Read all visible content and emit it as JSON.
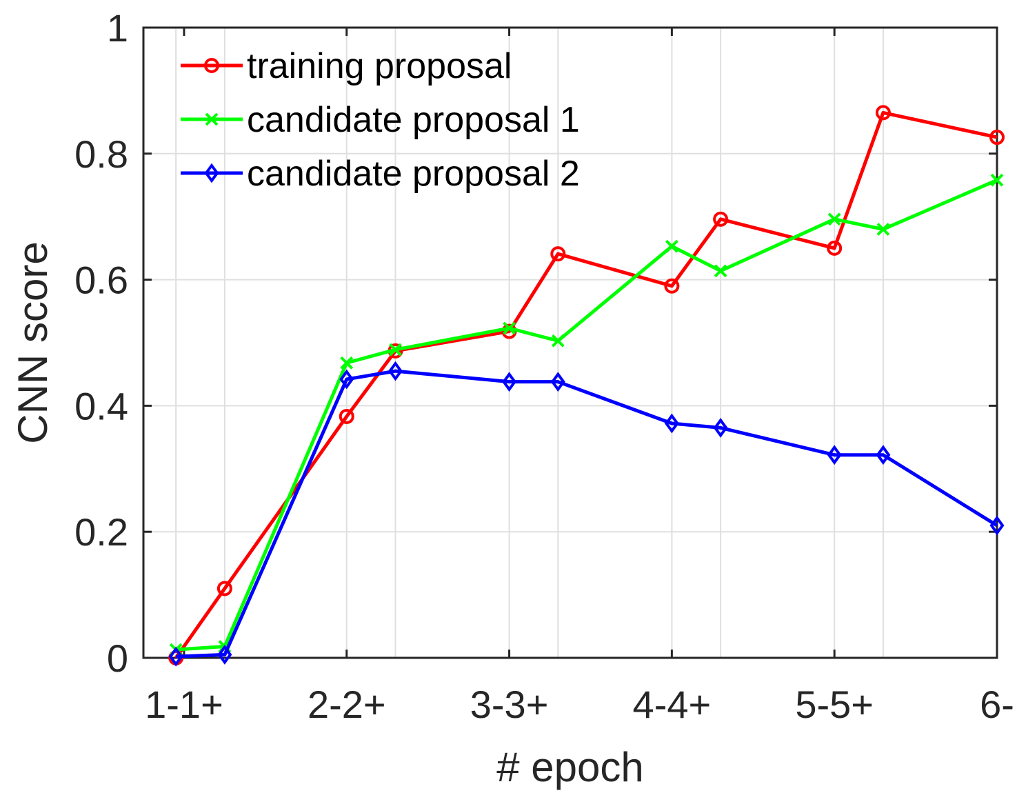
{
  "chart_data": {
    "type": "line",
    "xlabel": "# epoch",
    "ylabel": "CNN score",
    "ylim": [
      0,
      1
    ],
    "xlim": [
      0.5,
      11
    ],
    "yticks": [
      0,
      0.2,
      0.4,
      0.6,
      0.8,
      1
    ],
    "ytick_labels": [
      "0",
      "0.2",
      "0.4",
      "0.6",
      "0.8",
      "1"
    ],
    "xticks": [
      1,
      3,
      5,
      7,
      9,
      11
    ],
    "xtick_labels": [
      "1-1+",
      "2-2+",
      "3-3+",
      "4-4+",
      "5-5+",
      "6-"
    ],
    "x": [
      0.9,
      1.5,
      3,
      3.6,
      5,
      5.6,
      7,
      7.6,
      9,
      9.6,
      11
    ],
    "grid": true,
    "legend_position": "top-left",
    "series": [
      {
        "name": "training proposal",
        "color": "#ff0000",
        "marker": "circle",
        "values": [
          0.0,
          0.11,
          0.383,
          0.487,
          0.518,
          0.641,
          0.59,
          0.696,
          0.65,
          0.865,
          0.826
        ]
      },
      {
        "name": "candidate proposal 1",
        "color": "#00ff00",
        "marker": "x",
        "values": [
          0.013,
          0.018,
          0.468,
          0.489,
          0.523,
          0.503,
          0.653,
          0.614,
          0.696,
          0.68,
          0.758
        ]
      },
      {
        "name": "candidate proposal 2",
        "color": "#0000ff",
        "marker": "diamond",
        "values": [
          0.002,
          0.005,
          0.442,
          0.455,
          0.438,
          0.438,
          0.372,
          0.365,
          0.322,
          0.322,
          0.21
        ]
      }
    ]
  }
}
